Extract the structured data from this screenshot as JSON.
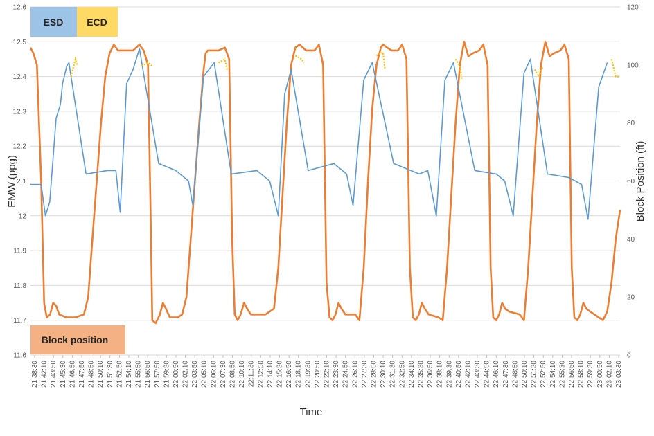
{
  "chart_data": {
    "type": "line",
    "xlabel": "Time",
    "ylabel_left": "EMW (ppg)",
    "ylabel_right": "Block Position (ft)",
    "ylim_left": [
      11.6,
      12.6
    ],
    "ylim_right": [
      0,
      120
    ],
    "yticks_left": [
      "11.6",
      "11.7",
      "11.8",
      "11.9",
      "12",
      "12.1",
      "12.2",
      "12.3",
      "12.4",
      "12.5",
      "12.6"
    ],
    "yticks_right": [
      "0",
      "20",
      "40",
      "60",
      "80",
      "100",
      "120"
    ],
    "grid": true,
    "legend_placement": "in-plot labels: top-left (ESD, ECD), bottom-left (Block position)",
    "x_ticks": [
      "21:38:30",
      "21:42:10",
      "21:43:50",
      "21:45:30",
      "21:46:50",
      "21:47:50",
      "21:48:50",
      "21:50:10",
      "21:51:30",
      "21:52:50",
      "21:54:10",
      "21:55:50",
      "21:56:50",
      "21:57:50",
      "21:59:30",
      "22:00:50",
      "22:02:10",
      "22:03:50",
      "22:05:10",
      "22:06:10",
      "22:07:30",
      "22:08:50",
      "22:10:10",
      "22:11:30",
      "22:12:50",
      "22:14:10",
      "22:15:30",
      "22:16:50",
      "22:18:10",
      "22:19:30",
      "22:20:50",
      "22:22:10",
      "22:23:30",
      "22:24:50",
      "22:26:10",
      "22:27:30",
      "22:28:50",
      "22:30:10",
      "22:31:30",
      "22:32:50",
      "22:34:10",
      "22:35:30",
      "22:36:50",
      "22:38:10",
      "22:39:30",
      "22:40:50",
      "22:42:10",
      "22:43:30",
      "22:44:50",
      "22:46:10",
      "22:47:30",
      "22:48:50",
      "22:50:10",
      "22:51:30",
      "22:52:50",
      "22:54:10",
      "22:55:30",
      "22:56:50",
      "22:58:10",
      "22:59:30",
      "23:00:50",
      "23:02:10",
      "23:03:30"
    ],
    "series": [
      {
        "name": "ESD",
        "color": "#5b9bd5",
        "axis": "left",
        "points": [
          [
            0,
            12.09
          ],
          [
            2.5,
            12.09
          ],
          [
            3.5,
            12.0
          ],
          [
            4.5,
            12.04
          ],
          [
            6,
            12.28
          ],
          [
            7,
            12.32
          ],
          [
            7.5,
            12.38
          ],
          [
            8.5,
            12.43
          ],
          [
            9,
            12.44
          ],
          [
            13,
            12.12
          ],
          [
            18,
            12.13
          ],
          [
            20,
            12.13
          ],
          [
            21,
            12.01
          ],
          [
            22.5,
            12.38
          ],
          [
            24,
            12.42
          ],
          [
            25.5,
            12.48
          ],
          [
            30,
            12.15
          ],
          [
            34,
            12.13
          ],
          [
            37,
            12.1
          ],
          [
            38,
            12.03
          ],
          [
            40.5,
            12.4
          ],
          [
            43,
            12.44
          ],
          [
            47,
            12.12
          ],
          [
            53,
            12.13
          ],
          [
            56,
            12.1
          ],
          [
            58,
            12.0
          ],
          [
            59.5,
            12.35
          ],
          [
            61,
            12.42
          ],
          [
            65,
            12.13
          ],
          [
            71,
            12.15
          ],
          [
            74,
            12.12
          ],
          [
            75.5,
            12.03
          ],
          [
            78,
            12.39
          ],
          [
            80,
            12.44
          ],
          [
            85,
            12.15
          ],
          [
            91,
            12.12
          ],
          [
            93,
            12.13
          ],
          [
            95,
            12.0
          ],
          [
            97,
            12.39
          ],
          [
            99,
            12.44
          ],
          [
            104,
            12.13
          ],
          [
            109,
            12.12
          ],
          [
            111,
            12.1
          ],
          [
            113,
            12.0
          ],
          [
            115.5,
            12.41
          ],
          [
            117,
            12.45
          ],
          [
            121,
            12.12
          ],
          [
            126,
            12.11
          ],
          [
            129,
            12.09
          ],
          [
            130.5,
            11.99
          ],
          [
            133,
            12.37
          ],
          [
            135,
            12.44
          ]
        ]
      },
      {
        "name": "ECD",
        "color": "#ffc000",
        "axis": "left",
        "points": [
          [
            9.5,
            12.4
          ],
          [
            10.5,
            12.45
          ],
          [
            11,
            12.43
          ],
          [
            26,
            12.43
          ],
          [
            27.5,
            12.44
          ],
          [
            28.5,
            12.43
          ],
          [
            44,
            12.44
          ],
          [
            45.5,
            12.45
          ],
          [
            46,
            12.42
          ],
          [
            62,
            12.46
          ],
          [
            63.5,
            12.45
          ],
          [
            64,
            12.44
          ],
          [
            81,
            12.46
          ],
          [
            82.5,
            12.47
          ],
          [
            83,
            12.42
          ],
          [
            99.5,
            12.45
          ],
          [
            100.5,
            12.43
          ],
          [
            101,
            12.39
          ],
          [
            118,
            12.42
          ],
          [
            119,
            12.4
          ],
          [
            120,
            12.43
          ],
          [
            136,
            12.45
          ],
          [
            137,
            12.4
          ],
          [
            138,
            12.4
          ]
        ]
      },
      {
        "name": "Block position",
        "color": "#ed7d31",
        "axis": "right",
        "points": [
          [
            0,
            106
          ],
          [
            0.7,
            104
          ],
          [
            1.5,
            100
          ],
          [
            2.5,
            60
          ],
          [
            3.2,
            18
          ],
          [
            3.8,
            13
          ],
          [
            4.6,
            14
          ],
          [
            5.3,
            18
          ],
          [
            6,
            17
          ],
          [
            6.7,
            14
          ],
          [
            8.4,
            13
          ],
          [
            10.5,
            13
          ],
          [
            12.5,
            14
          ],
          [
            13.5,
            20
          ],
          [
            14.5,
            40
          ],
          [
            15.5,
            60
          ],
          [
            16.5,
            80
          ],
          [
            17.5,
            96
          ],
          [
            18.5,
            104
          ],
          [
            19.5,
            107
          ],
          [
            20.5,
            105
          ],
          [
            22,
            105
          ],
          [
            24,
            105
          ],
          [
            25.5,
            107
          ],
          [
            26.5,
            105
          ],
          [
            27.5,
            100
          ],
          [
            28.1,
            50
          ],
          [
            28.5,
            12
          ],
          [
            29.3,
            11
          ],
          [
            30.3,
            14
          ],
          [
            31,
            18
          ],
          [
            31.7,
            16
          ],
          [
            32.6,
            13
          ],
          [
            34.5,
            13
          ],
          [
            35.5,
            14
          ],
          [
            36.5,
            20
          ],
          [
            37.5,
            40
          ],
          [
            38.5,
            60
          ],
          [
            39.5,
            80
          ],
          [
            40.5,
            98
          ],
          [
            41,
            104
          ],
          [
            41.5,
            105
          ],
          [
            44,
            105
          ],
          [
            45.5,
            106
          ],
          [
            46.5,
            102
          ],
          [
            47.2,
            40
          ],
          [
            47.8,
            14
          ],
          [
            48.5,
            12
          ],
          [
            49.2,
            14
          ],
          [
            50,
            18
          ],
          [
            50.7,
            16
          ],
          [
            51.6,
            14
          ],
          [
            55,
            14
          ],
          [
            57,
            16
          ],
          [
            58,
            30
          ],
          [
            59,
            55
          ],
          [
            60,
            80
          ],
          [
            61,
            100
          ],
          [
            62,
            106
          ],
          [
            63,
            107
          ],
          [
            64.5,
            105
          ],
          [
            66.5,
            105
          ],
          [
            67.5,
            107
          ],
          [
            68.5,
            100
          ],
          [
            69.3,
            25
          ],
          [
            70,
            13
          ],
          [
            70.7,
            12
          ],
          [
            71.4,
            14
          ],
          [
            72.1,
            18
          ],
          [
            72.8,
            16
          ],
          [
            73.7,
            14
          ],
          [
            76,
            14
          ],
          [
            77,
            12
          ],
          [
            78,
            30
          ],
          [
            79,
            60
          ],
          [
            80,
            85
          ],
          [
            81,
            100
          ],
          [
            82,
            106
          ],
          [
            82.5,
            107
          ],
          [
            84.5,
            105
          ],
          [
            86,
            105
          ],
          [
            87,
            107
          ],
          [
            88,
            102
          ],
          [
            88.8,
            30
          ],
          [
            89.5,
            13
          ],
          [
            90.2,
            12
          ],
          [
            90.9,
            14
          ],
          [
            91.6,
            18
          ],
          [
            92.3,
            16
          ],
          [
            93.2,
            14
          ],
          [
            95.5,
            13
          ],
          [
            96.5,
            12
          ],
          [
            97.5,
            30
          ],
          [
            98.5,
            55
          ],
          [
            99.5,
            80
          ],
          [
            100.5,
            100
          ],
          [
            101.5,
            108
          ],
          [
            102.5,
            103
          ],
          [
            103.5,
            104
          ],
          [
            105,
            105
          ],
          [
            106,
            107
          ],
          [
            107,
            100
          ],
          [
            107.7,
            30
          ],
          [
            108.3,
            13
          ],
          [
            109,
            12
          ],
          [
            109.7,
            14
          ],
          [
            110.4,
            18
          ],
          [
            111.1,
            16
          ],
          [
            112,
            15
          ],
          [
            114.5,
            14
          ],
          [
            115.5,
            12
          ],
          [
            116.5,
            30
          ],
          [
            117.5,
            55
          ],
          [
            118.5,
            80
          ],
          [
            119.5,
            100
          ],
          [
            120.5,
            108
          ],
          [
            121.5,
            103
          ],
          [
            122.5,
            104
          ],
          [
            124,
            105
          ],
          [
            125,
            107
          ],
          [
            126,
            102
          ],
          [
            126.7,
            30
          ],
          [
            127.3,
            13
          ],
          [
            128,
            12
          ],
          [
            128.7,
            14
          ],
          [
            129.4,
            18
          ],
          [
            130.1,
            16
          ],
          [
            131,
            15
          ],
          [
            133,
            13
          ],
          [
            134,
            12
          ],
          [
            135,
            15
          ],
          [
            136,
            25
          ],
          [
            137,
            40
          ],
          [
            138,
            50
          ]
        ]
      }
    ]
  },
  "legend": {
    "esd_label": "ESD",
    "ecd_label": "ECD",
    "block_label": "Block position",
    "esd_color": "#9dc3e6",
    "ecd_color": "#ffd966",
    "block_color": "#f4b183"
  }
}
